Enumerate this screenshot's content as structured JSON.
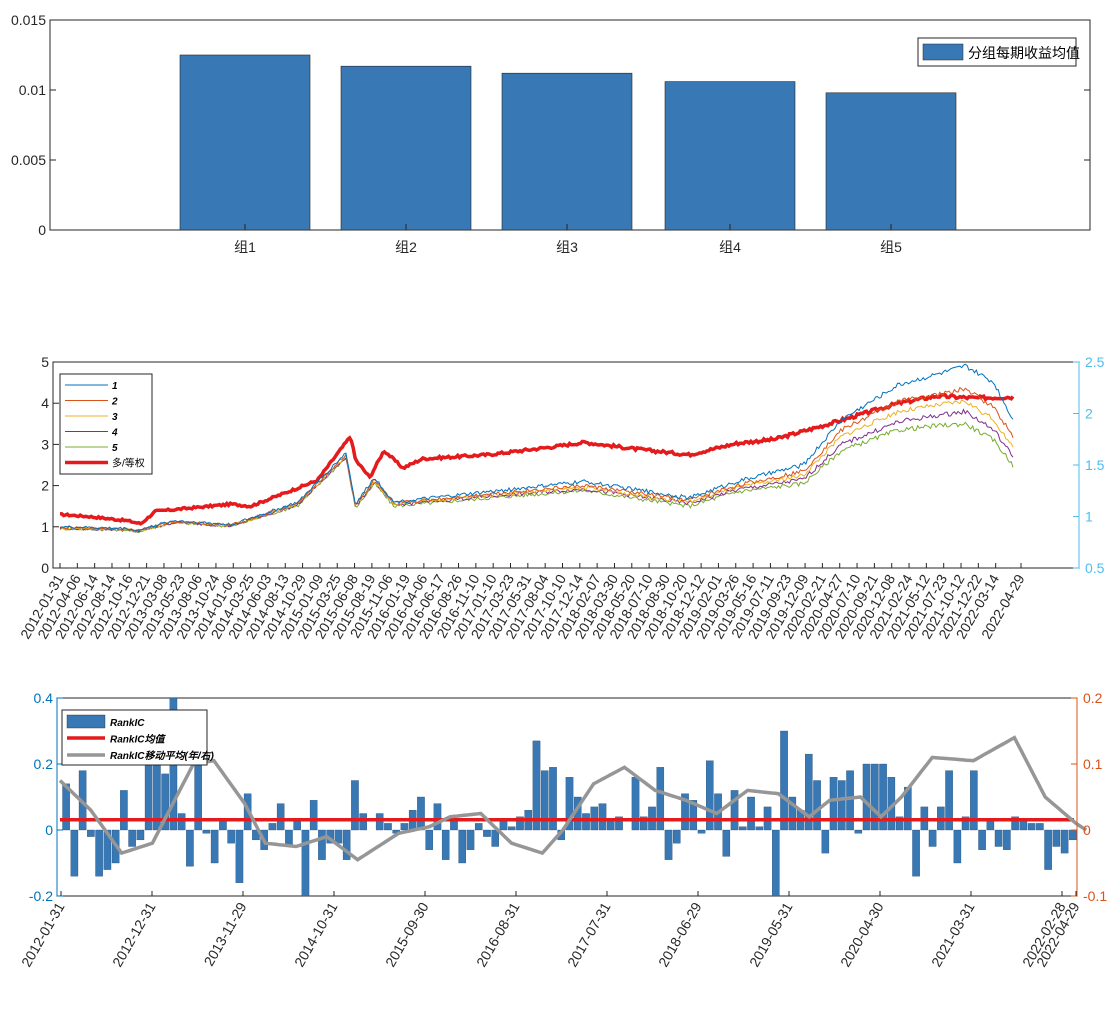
{
  "chart_data": [
    {
      "type": "bar",
      "categories": [
        "组1",
        "组2",
        "组3",
        "组4",
        "组5"
      ],
      "series": [
        {
          "name": "分组每期收益均值",
          "values": [
            0.0125,
            0.0117,
            0.0112,
            0.0106,
            0.0098
          ]
        }
      ],
      "ylim": [
        0,
        0.015
      ],
      "yticks": [
        "0",
        "0.005",
        "0.01",
        "0.015"
      ],
      "legend": "top-right",
      "color": "#3878b5",
      "grid": false
    },
    {
      "type": "line",
      "x_ticks": [
        "2012-01-31",
        "2012-04-06",
        "2012-06-14",
        "2012-08-14",
        "2012-10-16",
        "2012-12-21",
        "2013-03-08",
        "2013-05-23",
        "2013-08-06",
        "2013-10-24",
        "2014-01-06",
        "2014-03-25",
        "2014-06-03",
        "2014-08-13",
        "2014-10-29",
        "2015-01-09",
        "2015-03-25",
        "2015-06-08",
        "2015-08-19",
        "2015-11-06",
        "2016-01-19",
        "2016-04-06",
        "2016-06-17",
        "2016-08-26",
        "2016-11-10",
        "2017-01-10",
        "2017-03-23",
        "2017-05-31",
        "2017-08-04",
        "2017-10-10",
        "2017-12-14",
        "2018-02-07",
        "2018-03-30",
        "2018-05-20",
        "2018-07-10",
        "2018-08-30",
        "2018-10-20",
        "2018-12-12",
        "2019-02-01",
        "2019-03-26",
        "2019-05-16",
        "2019-07-11",
        "2019-09-23",
        "2019-12-09",
        "2020-02-21",
        "2020-04-27",
        "2020-07-10",
        "2020-09-21",
        "2020-12-08",
        "2021-02-24",
        "2021-05-12",
        "2021-07-23",
        "2021-10-12",
        "2021-12-22",
        "2022-03-14",
        "2022-04-29"
      ],
      "ylim_left": [
        0,
        5
      ],
      "yticks_left": [
        "0",
        "1",
        "2",
        "3",
        "4",
        "5"
      ],
      "ylim_right": [
        0.5,
        2.5
      ],
      "yticks_right": [
        "0.5",
        "1",
        "1.5",
        "2",
        "2.5"
      ],
      "series": [
        {
          "name": "1",
          "color": "#0072bd",
          "axis": "left",
          "keypoints": [
            [
              0,
              1.0
            ],
            [
              0.07,
              0.96
            ],
            [
              0.08,
              0.91
            ],
            [
              0.12,
              1.15
            ],
            [
              0.18,
              1.05
            ],
            [
              0.25,
              1.6
            ],
            [
              0.3,
              2.8
            ],
            [
              0.31,
              1.55
            ],
            [
              0.33,
              2.2
            ],
            [
              0.35,
              1.6
            ],
            [
              0.45,
              1.85
            ],
            [
              0.55,
              2.1
            ],
            [
              0.66,
              1.7
            ],
            [
              0.71,
              2.1
            ],
            [
              0.78,
              2.5
            ],
            [
              0.82,
              3.6
            ],
            [
              0.88,
              4.45
            ],
            [
              0.92,
              4.7
            ],
            [
              0.95,
              4.9
            ],
            [
              0.98,
              4.5
            ],
            [
              1.0,
              3.6
            ]
          ]
        },
        {
          "name": "2",
          "color": "#d95319",
          "axis": "left",
          "keypoints": [
            [
              0,
              0.98
            ],
            [
              0.07,
              0.95
            ],
            [
              0.08,
              0.9
            ],
            [
              0.12,
              1.13
            ],
            [
              0.18,
              1.04
            ],
            [
              0.25,
              1.58
            ],
            [
              0.3,
              2.75
            ],
            [
              0.31,
              1.52
            ],
            [
              0.33,
              2.15
            ],
            [
              0.35,
              1.57
            ],
            [
              0.45,
              1.8
            ],
            [
              0.55,
              2.0
            ],
            [
              0.66,
              1.65
            ],
            [
              0.71,
              2.0
            ],
            [
              0.78,
              2.35
            ],
            [
              0.82,
              3.35
            ],
            [
              0.88,
              4.05
            ],
            [
              0.92,
              4.2
            ],
            [
              0.95,
              4.35
            ],
            [
              0.98,
              3.9
            ],
            [
              1.0,
              3.2
            ]
          ]
        },
        {
          "name": "3",
          "color": "#edb120",
          "axis": "left",
          "keypoints": [
            [
              0,
              0.97
            ],
            [
              0.07,
              0.94
            ],
            [
              0.08,
              0.89
            ],
            [
              0.12,
              1.12
            ],
            [
              0.18,
              1.03
            ],
            [
              0.25,
              1.56
            ],
            [
              0.3,
              2.72
            ],
            [
              0.31,
              1.5
            ],
            [
              0.33,
              2.12
            ],
            [
              0.35,
              1.55
            ],
            [
              0.45,
              1.77
            ],
            [
              0.55,
              1.95
            ],
            [
              0.66,
              1.6
            ],
            [
              0.71,
              1.95
            ],
            [
              0.78,
              2.25
            ],
            [
              0.82,
              3.2
            ],
            [
              0.88,
              3.8
            ],
            [
              0.92,
              3.95
            ],
            [
              0.95,
              4.05
            ],
            [
              0.98,
              3.6
            ],
            [
              1.0,
              2.9
            ]
          ]
        },
        {
          "name": "4",
          "color": "#7e2f8e",
          "axis": "left",
          "keypoints": [
            [
              0,
              0.96
            ],
            [
              0.07,
              0.93
            ],
            [
              0.08,
              0.88
            ],
            [
              0.12,
              1.11
            ],
            [
              0.18,
              1.02
            ],
            [
              0.25,
              1.54
            ],
            [
              0.3,
              2.7
            ],
            [
              0.31,
              1.48
            ],
            [
              0.33,
              2.1
            ],
            [
              0.35,
              1.53
            ],
            [
              0.45,
              1.74
            ],
            [
              0.55,
              1.92
            ],
            [
              0.66,
              1.57
            ],
            [
              0.71,
              1.9
            ],
            [
              0.78,
              2.15
            ],
            [
              0.82,
              3.0
            ],
            [
              0.88,
              3.55
            ],
            [
              0.92,
              3.7
            ],
            [
              0.95,
              3.8
            ],
            [
              0.98,
              3.35
            ],
            [
              1.0,
              2.7
            ]
          ]
        },
        {
          "name": "5",
          "color": "#77ac30",
          "axis": "left",
          "keypoints": [
            [
              0,
              0.95
            ],
            [
              0.07,
              0.92
            ],
            [
              0.08,
              0.87
            ],
            [
              0.12,
              1.1
            ],
            [
              0.18,
              1.01
            ],
            [
              0.25,
              1.52
            ],
            [
              0.3,
              2.68
            ],
            [
              0.31,
              1.45
            ],
            [
              0.33,
              2.05
            ],
            [
              0.35,
              1.5
            ],
            [
              0.45,
              1.7
            ],
            [
              0.55,
              1.88
            ],
            [
              0.66,
              1.5
            ],
            [
              0.71,
              1.85
            ],
            [
              0.78,
              2.05
            ],
            [
              0.82,
              2.85
            ],
            [
              0.88,
              3.35
            ],
            [
              0.92,
              3.45
            ],
            [
              0.95,
              3.5
            ],
            [
              0.98,
              3.1
            ],
            [
              1.0,
              2.5
            ]
          ]
        },
        {
          "name": "多/等权",
          "color": "#e41a1c",
          "axis": "right",
          "keypoints": [
            [
              0,
              1.02
            ],
            [
              0.03,
              1.0
            ],
            [
              0.07,
              0.96
            ],
            [
              0.085,
              0.93
            ],
            [
              0.1,
              1.05
            ],
            [
              0.18,
              1.12
            ],
            [
              0.2,
              1.1
            ],
            [
              0.27,
              1.35
            ],
            [
              0.305,
              1.78
            ],
            [
              0.31,
              1.55
            ],
            [
              0.325,
              1.38
            ],
            [
              0.34,
              1.64
            ],
            [
              0.36,
              1.47
            ],
            [
              0.38,
              1.56
            ],
            [
              0.45,
              1.6
            ],
            [
              0.52,
              1.68
            ],
            [
              0.55,
              1.72
            ],
            [
              0.6,
              1.66
            ],
            [
              0.66,
              1.6
            ],
            [
              0.71,
              1.71
            ],
            [
              0.75,
              1.75
            ],
            [
              0.8,
              1.88
            ],
            [
              0.84,
              1.99
            ],
            [
              0.88,
              2.1
            ],
            [
              0.92,
              2.17
            ],
            [
              0.96,
              2.15
            ],
            [
              1.0,
              2.16
            ]
          ]
        }
      ],
      "legend": "top-left",
      "grid": false
    },
    {
      "type": "bar",
      "x_ticks": [
        "2012-01-31",
        "2012-12-31",
        "2013-11-29",
        "2014-10-31",
        "2015-09-30",
        "2016-08-31",
        "2017-07-31",
        "2018-06-29",
        "2019-05-31",
        "2020-04-30",
        "2021-03-31",
        "2022-02-28",
        "2022-04-29"
      ],
      "values": [
        0.14,
        -0.14,
        0.18,
        -0.02,
        -0.14,
        -0.12,
        -0.1,
        0.12,
        -0.05,
        -0.03,
        0.28,
        0.2,
        0.17,
        0.4,
        0.05,
        -0.11,
        0.23,
        -0.01,
        -0.1,
        0.03,
        -0.04,
        -0.16,
        0.11,
        -0.03,
        -0.06,
        0.02,
        0.08,
        -0.05,
        0.03,
        -0.2,
        0.09,
        -0.09,
        -0.04,
        -0.04,
        -0.09,
        0.15,
        0.05,
        0.0,
        0.05,
        0.02,
        -0.01,
        0.02,
        0.06,
        0.1,
        -0.06,
        0.08,
        -0.09,
        0.03,
        -0.1,
        -0.06,
        0.02,
        -0.02,
        -0.05,
        0.03,
        0.01,
        0.04,
        0.06,
        0.27,
        0.18,
        0.19,
        -0.03,
        0.16,
        0.1,
        0.05,
        0.07,
        0.08,
        0.03,
        0.04,
        0.0,
        0.16,
        0.04,
        0.07,
        0.19,
        -0.09,
        -0.04,
        0.11,
        0.09,
        -0.01,
        0.21,
        0.11,
        -0.08,
        0.12,
        0.01,
        0.1,
        0.01,
        0.07,
        -0.25,
        0.3,
        0.1,
        0.06,
        0.23,
        0.15,
        -0.07,
        0.16,
        0.15,
        0.18,
        -0.01,
        0.2,
        0.2,
        0.2,
        0.16,
        0.04,
        0.13,
        -0.14,
        0.07,
        -0.05,
        0.07,
        0.18,
        -0.1,
        0.04,
        0.18,
        -0.06,
        0.03,
        -0.05,
        -0.06,
        0.04,
        0.03,
        0.02,
        0.02,
        -0.12,
        -0.05,
        -0.07,
        -0.03
      ],
      "mean": 0.031,
      "moving_average_right_axis": {
        "keypoints": [
          [
            0,
            0.075
          ],
          [
            0.03,
            0.03
          ],
          [
            0.06,
            -0.035
          ],
          [
            0.09,
            -0.02
          ],
          [
            0.13,
            0.1
          ],
          [
            0.15,
            0.105
          ],
          [
            0.18,
            0.04
          ],
          [
            0.2,
            -0.02
          ],
          [
            0.23,
            -0.025
          ],
          [
            0.26,
            -0.01
          ],
          [
            0.29,
            -0.045
          ],
          [
            0.33,
            -0.005
          ],
          [
            0.36,
            0.005
          ],
          [
            0.38,
            0.02
          ],
          [
            0.41,
            0.025
          ],
          [
            0.44,
            -0.02
          ],
          [
            0.47,
            -0.035
          ],
          [
            0.49,
            0.0
          ],
          [
            0.52,
            0.07
          ],
          [
            0.55,
            0.095
          ],
          [
            0.58,
            0.06
          ],
          [
            0.61,
            0.045
          ],
          [
            0.64,
            0.025
          ],
          [
            0.67,
            0.06
          ],
          [
            0.7,
            0.055
          ],
          [
            0.73,
            0.02
          ],
          [
            0.75,
            0.045
          ],
          [
            0.78,
            0.05
          ],
          [
            0.8,
            0.02
          ],
          [
            0.82,
            0.05
          ],
          [
            0.85,
            0.11
          ],
          [
            0.89,
            0.105
          ],
          [
            0.93,
            0.14
          ],
          [
            0.96,
            0.05
          ],
          [
            0.99,
            0.01
          ],
          [
            1.0,
            0.0
          ]
        ],
        "range_end_fraction": 0.95
      },
      "series_names": [
        "RankIC",
        "RankIC均值",
        "RankIC移动平均(年/右)"
      ],
      "ylim_left": [
        -0.2,
        0.4
      ],
      "yticks_left": [
        "-0.2",
        "0",
        "0.2",
        "0.4"
      ],
      "ylim_right": [
        -0.1,
        0.2
      ],
      "yticks_right": [
        "-0.1",
        "0",
        "0.1",
        "0.2"
      ],
      "legend": "top-left",
      "grid": false
    }
  ]
}
